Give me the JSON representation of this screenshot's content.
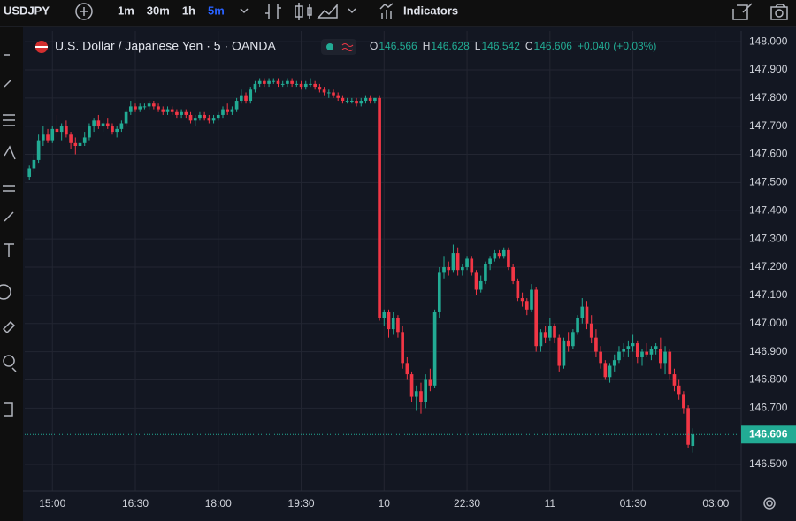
{
  "toolbar": {
    "symbol": "USDJPY",
    "intervals": [
      "1m",
      "30m",
      "1h",
      "5m"
    ],
    "active_interval": 3,
    "indicators": "Indicators"
  },
  "chart_data": {
    "type": "candlestick",
    "title": "U.S. Dollar / Japanese Yen · 5 · OANDA",
    "ohlc_labels": [
      "O",
      "H",
      "L",
      "C"
    ],
    "change": "+0.040 (+0.03%)",
    "up_color": "#22ab94",
    "down_color": "#f23645",
    "candles": [
      [
        147.52,
        147.56,
        147.51,
        147.55
      ],
      [
        147.55,
        147.6,
        147.54,
        147.58
      ],
      [
        147.58,
        147.67,
        147.57,
        147.65
      ],
      [
        147.65,
        147.7,
        147.63,
        147.67
      ],
      [
        147.67,
        147.69,
        147.64,
        147.65
      ],
      [
        147.65,
        147.7,
        147.64,
        147.69
      ],
      [
        147.69,
        147.74,
        147.66,
        147.68
      ],
      [
        147.68,
        147.71,
        147.65,
        147.7
      ],
      [
        147.7,
        147.72,
        147.66,
        147.67
      ],
      [
        147.67,
        147.68,
        147.62,
        147.64
      ],
      [
        147.64,
        147.66,
        147.6,
        147.63
      ],
      [
        147.63,
        147.66,
        147.61,
        147.64
      ],
      [
        147.64,
        147.68,
        147.63,
        147.66
      ],
      [
        147.66,
        147.71,
        147.65,
        147.7
      ],
      [
        147.7,
        147.73,
        147.68,
        147.72
      ],
      [
        147.72,
        147.74,
        147.69,
        147.7
      ],
      [
        147.7,
        147.72,
        147.68,
        147.71
      ],
      [
        147.71,
        147.73,
        147.69,
        147.7
      ],
      [
        147.7,
        147.71,
        147.67,
        147.68
      ],
      [
        147.68,
        147.7,
        147.66,
        147.69
      ],
      [
        147.69,
        147.72,
        147.68,
        147.71
      ],
      [
        147.71,
        147.76,
        147.7,
        147.75
      ],
      [
        147.75,
        147.79,
        147.74,
        147.77
      ],
      [
        147.77,
        147.78,
        147.75,
        147.76
      ],
      [
        147.76,
        147.78,
        147.75,
        147.77
      ],
      [
        147.77,
        147.78,
        147.76,
        147.77
      ],
      [
        147.77,
        147.79,
        147.76,
        147.78
      ],
      [
        147.78,
        147.79,
        147.76,
        147.77
      ],
      [
        147.77,
        147.78,
        147.75,
        147.76
      ],
      [
        147.76,
        147.77,
        147.74,
        147.75
      ],
      [
        147.75,
        147.77,
        147.74,
        147.76
      ],
      [
        147.76,
        147.77,
        147.74,
        147.75
      ],
      [
        147.75,
        147.76,
        147.73,
        147.74
      ],
      [
        147.74,
        147.76,
        147.73,
        147.75
      ],
      [
        147.75,
        147.76,
        147.73,
        147.74
      ],
      [
        147.74,
        147.75,
        147.71,
        147.72
      ],
      [
        147.72,
        147.74,
        147.7,
        147.73
      ],
      [
        147.73,
        147.75,
        147.72,
        147.74
      ],
      [
        147.74,
        147.75,
        147.72,
        147.73
      ],
      [
        147.73,
        147.74,
        147.71,
        147.72
      ],
      [
        147.72,
        147.74,
        147.71,
        147.73
      ],
      [
        147.73,
        147.75,
        147.72,
        147.74
      ],
      [
        147.74,
        147.77,
        147.73,
        147.76
      ],
      [
        147.76,
        147.78,
        147.74,
        147.75
      ],
      [
        147.75,
        147.77,
        147.74,
        147.76
      ],
      [
        147.76,
        147.8,
        147.75,
        147.79
      ],
      [
        147.79,
        147.83,
        147.78,
        147.81
      ],
      [
        147.81,
        147.82,
        147.78,
        147.79
      ],
      [
        147.79,
        147.84,
        147.78,
        147.83
      ],
      [
        147.83,
        147.86,
        147.82,
        147.85
      ],
      [
        147.85,
        147.87,
        147.84,
        147.86
      ],
      [
        147.86,
        147.87,
        147.84,
        147.85
      ],
      [
        147.85,
        147.87,
        147.84,
        147.86
      ],
      [
        147.86,
        147.87,
        147.85,
        147.86
      ],
      [
        147.86,
        147.87,
        147.84,
        147.85
      ],
      [
        147.85,
        147.86,
        147.84,
        147.85
      ],
      [
        147.85,
        147.87,
        147.84,
        147.86
      ],
      [
        147.86,
        147.87,
        147.84,
        147.85
      ],
      [
        147.85,
        147.86,
        147.84,
        147.85
      ],
      [
        147.85,
        147.86,
        147.83,
        147.84
      ],
      [
        147.84,
        147.86,
        147.83,
        147.85
      ],
      [
        147.85,
        147.87,
        147.84,
        147.85
      ],
      [
        147.85,
        147.86,
        147.83,
        147.84
      ],
      [
        147.84,
        147.85,
        147.82,
        147.83
      ],
      [
        147.83,
        147.84,
        147.81,
        147.82
      ],
      [
        147.82,
        147.83,
        147.8,
        147.82
      ],
      [
        147.82,
        147.83,
        147.8,
        147.81
      ],
      [
        147.81,
        147.82,
        147.79,
        147.8
      ],
      [
        147.8,
        147.81,
        147.78,
        147.79
      ],
      [
        147.79,
        147.8,
        147.78,
        147.79
      ],
      [
        147.79,
        147.8,
        147.78,
        147.79
      ],
      [
        147.79,
        147.8,
        147.77,
        147.78
      ],
      [
        147.78,
        147.8,
        147.77,
        147.79
      ],
      [
        147.79,
        147.81,
        147.78,
        147.8
      ],
      [
        147.8,
        147.81,
        147.78,
        147.79
      ],
      [
        147.79,
        147.8,
        147.78,
        147.8
      ],
      [
        147.8,
        147.81,
        147.01,
        147.02
      ],
      [
        147.02,
        147.05,
        146.99,
        147.04
      ],
      [
        147.04,
        147.05,
        146.95,
        146.98
      ],
      [
        146.98,
        147.04,
        146.96,
        147.02
      ],
      [
        147.02,
        147.03,
        146.95,
        146.97
      ],
      [
        146.97,
        146.99,
        146.84,
        146.86
      ],
      [
        146.86,
        146.88,
        146.8,
        146.82
      ],
      [
        146.82,
        146.83,
        146.72,
        146.74
      ],
      [
        146.74,
        146.78,
        146.69,
        146.76
      ],
      [
        146.76,
        146.79,
        146.68,
        146.72
      ],
      [
        146.72,
        146.82,
        146.7,
        146.8
      ],
      [
        146.8,
        146.84,
        146.76,
        146.78
      ],
      [
        146.78,
        147.05,
        146.77,
        147.04
      ],
      [
        147.04,
        147.2,
        147.02,
        147.18
      ],
      [
        147.18,
        147.24,
        147.16,
        147.2
      ],
      [
        147.2,
        147.22,
        147.17,
        147.19
      ],
      [
        147.19,
        147.28,
        147.18,
        147.25
      ],
      [
        147.25,
        147.27,
        147.17,
        147.19
      ],
      [
        147.19,
        147.21,
        147.17,
        147.2
      ],
      [
        147.2,
        147.24,
        147.19,
        147.23
      ],
      [
        147.23,
        147.24,
        147.17,
        147.18
      ],
      [
        147.18,
        147.19,
        147.1,
        147.12
      ],
      [
        147.12,
        147.17,
        147.11,
        147.15
      ],
      [
        147.15,
        147.22,
        147.14,
        147.21
      ],
      [
        147.21,
        147.24,
        147.19,
        147.23
      ],
      [
        147.23,
        147.26,
        147.22,
        147.25
      ],
      [
        147.25,
        147.26,
        147.23,
        147.24
      ],
      [
        147.24,
        147.27,
        147.23,
        147.26
      ],
      [
        147.26,
        147.27,
        147.19,
        147.2
      ],
      [
        147.2,
        147.21,
        147.14,
        147.15
      ],
      [
        147.15,
        147.16,
        147.08,
        147.09
      ],
      [
        147.09,
        147.11,
        147.06,
        147.08
      ],
      [
        147.08,
        147.09,
        147.03,
        147.05
      ],
      [
        147.05,
        147.14,
        147.04,
        147.12
      ],
      [
        147.12,
        147.13,
        146.9,
        146.92
      ],
      [
        146.92,
        146.98,
        146.9,
        146.97
      ],
      [
        146.97,
        146.99,
        146.93,
        146.95
      ],
      [
        146.95,
        147.02,
        146.94,
        146.99
      ],
      [
        146.99,
        147.0,
        146.93,
        146.95
      ],
      [
        146.95,
        146.96,
        146.83,
        146.85
      ],
      [
        146.85,
        146.95,
        146.84,
        146.94
      ],
      [
        146.94,
        146.97,
        146.9,
        146.92
      ],
      [
        146.92,
        146.98,
        146.91,
        146.97
      ],
      [
        146.97,
        147.03,
        146.96,
        147.02
      ],
      [
        147.02,
        147.09,
        147.0,
        147.06
      ],
      [
        147.06,
        147.08,
        146.98,
        147.0
      ],
      [
        147.0,
        147.03,
        146.93,
        146.95
      ],
      [
        146.95,
        146.98,
        146.88,
        146.9
      ],
      [
        146.9,
        146.92,
        146.84,
        146.86
      ],
      [
        146.86,
        146.87,
        146.8,
        146.81
      ],
      [
        146.81,
        146.86,
        146.79,
        146.85
      ],
      [
        146.85,
        146.89,
        146.83,
        146.87
      ],
      [
        146.87,
        146.92,
        146.86,
        146.9
      ],
      [
        146.9,
        146.93,
        146.88,
        146.91
      ],
      [
        146.91,
        146.94,
        146.88,
        146.92
      ],
      [
        146.92,
        146.96,
        146.9,
        146.93
      ],
      [
        146.93,
        146.94,
        146.86,
        146.88
      ],
      [
        146.88,
        146.91,
        146.85,
        146.9
      ],
      [
        146.9,
        146.93,
        146.88,
        146.89
      ],
      [
        146.89,
        146.92,
        146.87,
        146.91
      ],
      [
        146.91,
        146.93,
        146.89,
        146.92
      ],
      [
        146.91,
        146.95,
        146.84,
        146.86
      ],
      [
        146.86,
        146.92,
        146.82,
        146.9
      ],
      [
        146.9,
        146.91,
        146.8,
        146.82
      ],
      [
        146.82,
        146.84,
        146.76,
        146.78
      ],
      [
        146.78,
        146.8,
        146.73,
        146.75
      ],
      [
        146.75,
        146.76,
        146.68,
        146.7
      ],
      [
        146.7,
        146.71,
        146.56,
        146.57
      ],
      [
        146.566,
        146.628,
        146.542,
        146.606
      ]
    ],
    "xlim": [
      -1,
      154.5
    ],
    "xticks": [
      {
        "value": 5,
        "label": "15:00"
      },
      {
        "value": 23,
        "label": "16:30"
      },
      {
        "value": 41,
        "label": "18:00"
      },
      {
        "value": 59,
        "label": "19:30"
      },
      {
        "value": 77,
        "label": "10"
      },
      {
        "value": 95,
        "label": "22:30"
      },
      {
        "value": 113,
        "label": "11"
      },
      {
        "value": 131,
        "label": "01:30"
      },
      {
        "value": 149,
        "label": "03:00"
      }
    ],
    "ylim": [
      146.406,
      148.038
    ],
    "yticks": [
      {
        "value": 146.5,
        "label": "146.500"
      },
      {
        "value": 146.7,
        "label": "146.700"
      },
      {
        "value": 146.8,
        "label": "146.800"
      },
      {
        "value": 146.9,
        "label": "146.900"
      },
      {
        "value": 147,
        "label": "147.000"
      },
      {
        "value": 147.1,
        "label": "147.100"
      },
      {
        "value": 147.2,
        "label": "147.200"
      },
      {
        "value": 147.3,
        "label": "147.300"
      },
      {
        "value": 147.4,
        "label": "147.400"
      },
      {
        "value": 147.5,
        "label": "147.500"
      },
      {
        "value": 147.6,
        "label": "147.600"
      },
      {
        "value": 147.7,
        "label": "147.700"
      },
      {
        "value": 147.8,
        "label": "147.800"
      },
      {
        "value": 147.9,
        "label": "147.900"
      },
      {
        "value": 148,
        "label": "148.000"
      }
    ],
    "grid": true
  }
}
